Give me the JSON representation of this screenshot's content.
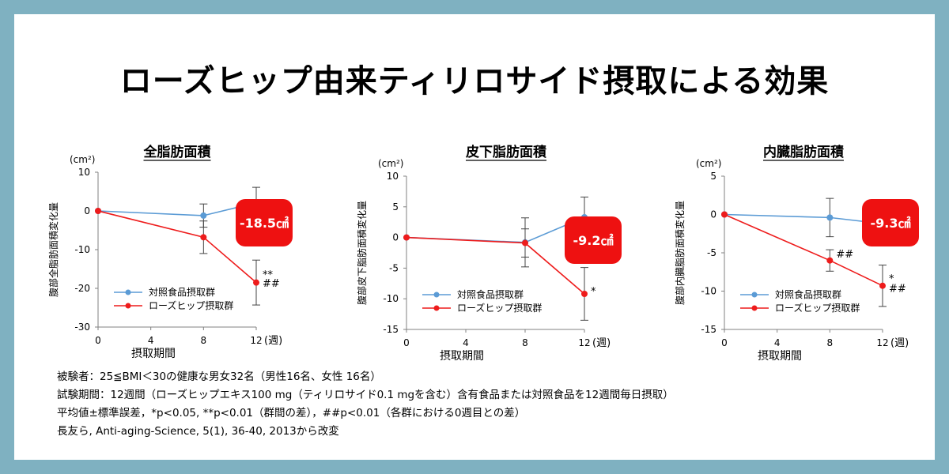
{
  "title": "ローズヒップ由来ティリロサイド摂取による効果",
  "colors": {
    "control": "#5b9bd5",
    "rosehip": "#ee1c1c",
    "badge": "#ee1111",
    "frame": "#7fb1c1"
  },
  "legend": {
    "control": "対照食品摂取群",
    "rosehip": "ローズヒップ摂取群"
  },
  "chart_data": [
    {
      "type": "line",
      "title": "全脂肪面積",
      "unit": "(cm²)",
      "ylabel": "腹部全脂肪面積変化量",
      "xlabel": "摂取期間",
      "x_unit": "(週)",
      "x": [
        0,
        8,
        12
      ],
      "xticks": [
        0,
        4,
        8,
        12
      ],
      "ylim": [
        -30,
        10
      ],
      "yticks": [
        10,
        0,
        -10,
        -20,
        -30
      ],
      "series": [
        {
          "name": "対照食品摂取群",
          "key": "control",
          "values": [
            0,
            -1.2,
            2.1
          ],
          "errors": [
            0,
            3.0,
            4.0
          ]
        },
        {
          "name": "ローズヒップ摂取群",
          "key": "rosehip",
          "values": [
            0,
            -6.8,
            -18.5
          ],
          "errors": [
            0,
            4.2,
            5.8
          ]
        }
      ],
      "badge": "-18.5㎠",
      "annotations": [
        {
          "text": "**",
          "x": 12,
          "y": -16.5
        },
        {
          "text": "##",
          "x": 12,
          "y": -18.8
        }
      ]
    },
    {
      "type": "line",
      "title": "皮下脂肪面積",
      "unit": "(cm²)",
      "ylabel": "腹部皮下脂肪面積変化量",
      "xlabel": "摂取期間",
      "x_unit": "(週)",
      "x": [
        0,
        8,
        12
      ],
      "xticks": [
        0,
        4,
        8,
        12
      ],
      "ylim": [
        -15,
        10
      ],
      "yticks": [
        10,
        5,
        0,
        -5,
        -10,
        -15
      ],
      "series": [
        {
          "name": "対照食品摂取群",
          "key": "control",
          "values": [
            0,
            -0.8,
            3.3
          ],
          "errors": [
            0,
            4.0,
            3.3
          ]
        },
        {
          "name": "ローズヒップ摂取群",
          "key": "rosehip",
          "values": [
            0,
            -0.9,
            -9.2
          ],
          "errors": [
            0,
            2.3,
            4.3
          ]
        }
      ],
      "badge": "-9.2㎠",
      "annotations": [
        {
          "text": "*",
          "x": 12,
          "y": -8.8
        }
      ]
    },
    {
      "type": "line",
      "title": "内臓脂肪面積",
      "unit": "(cm²)",
      "ylabel": "腹部内臓脂肪面積変化量",
      "xlabel": "摂取期間",
      "x_unit": "(週)",
      "x": [
        0,
        8,
        12
      ],
      "xticks": [
        0,
        4,
        8,
        12
      ],
      "ylim": [
        -15,
        5
      ],
      "yticks": [
        5,
        0,
        -5,
        -10,
        -15
      ],
      "series": [
        {
          "name": "対照食品摂取群",
          "key": "control",
          "values": [
            0,
            -0.4,
            -1.2
          ],
          "errors": [
            0,
            2.5,
            2.5
          ]
        },
        {
          "name": "ローズヒップ摂取群",
          "key": "rosehip",
          "values": [
            0,
            -6.0,
            -9.3
          ],
          "errors": [
            0,
            1.4,
            2.7
          ]
        }
      ],
      "badge": "-9.3㎠",
      "annotations": [
        {
          "text": "##",
          "x": 8,
          "y": -5.2
        },
        {
          "text": "*",
          "x": 12,
          "y": -8.4
        },
        {
          "text": "##",
          "x": 12,
          "y": -9.7
        }
      ]
    }
  ],
  "notes": [
    "被験者：25≦BMI＜30の健康な男女32名（男性16名、女性 16名）",
    "試験期間：12週間（ローズヒップエキス100 mg（ティリロサイド0.1 mgを含む）含有食品または対照食品を12週間毎日摂取）",
    "平均値±標準誤差，*p<0.05, **p<0.01（群間の差），##p<0.01（各群における0週目との差）",
    "長友ら, Anti-aging-Science, 5(1), 36-40, 2013から改変"
  ]
}
